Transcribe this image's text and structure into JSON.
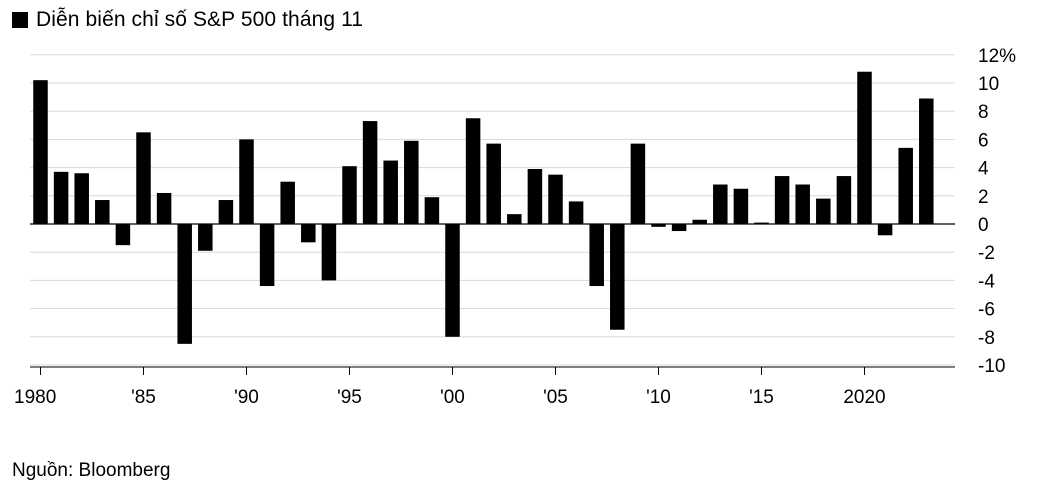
{
  "chart_data": {
    "type": "bar",
    "title": "Diễn biến chỉ số S&P 500 tháng 11",
    "xlabel": "",
    "ylabel": "",
    "ylim": [
      -10,
      12
    ],
    "y_ticks": [
      "12%",
      "10",
      "8",
      "6",
      "4",
      "2",
      "0",
      "-2",
      "-4",
      "-6",
      "-8",
      "-10"
    ],
    "y_tick_values": [
      12,
      10,
      8,
      6,
      4,
      2,
      0,
      -2,
      -4,
      -6,
      -8,
      -10
    ],
    "x_ticks": [
      "1980",
      "'85",
      "'90",
      "'95",
      "'00",
      "'05",
      "'10",
      "'15",
      "2020"
    ],
    "x_tick_years": [
      1980,
      1985,
      1990,
      1995,
      2000,
      2005,
      2010,
      2015,
      2020
    ],
    "grid": true,
    "color": "#000000",
    "categories": [
      1980,
      1981,
      1982,
      1983,
      1984,
      1985,
      1986,
      1987,
      1988,
      1989,
      1990,
      1991,
      1992,
      1993,
      1994,
      1995,
      1996,
      1997,
      1998,
      1999,
      2000,
      2001,
      2002,
      2003,
      2004,
      2005,
      2006,
      2007,
      2008,
      2009,
      2010,
      2011,
      2012,
      2013,
      2014,
      2015,
      2016,
      2017,
      2018,
      2019,
      2020,
      2021,
      2022,
      2023
    ],
    "values": [
      10.2,
      3.7,
      3.6,
      1.7,
      -1.5,
      6.5,
      2.2,
      -8.5,
      -1.9,
      1.7,
      6.0,
      -4.4,
      3.0,
      -1.3,
      -4.0,
      4.1,
      7.3,
      4.5,
      5.9,
      1.9,
      -8.0,
      7.5,
      5.7,
      0.7,
      3.9,
      3.5,
      1.6,
      -4.4,
      -7.5,
      5.7,
      -0.2,
      -0.5,
      0.3,
      2.8,
      2.5,
      0.1,
      3.4,
      2.8,
      1.8,
      3.4,
      10.8,
      -0.8,
      5.4,
      8.9
    ]
  },
  "source_text": "Nguồn: Bloomberg"
}
